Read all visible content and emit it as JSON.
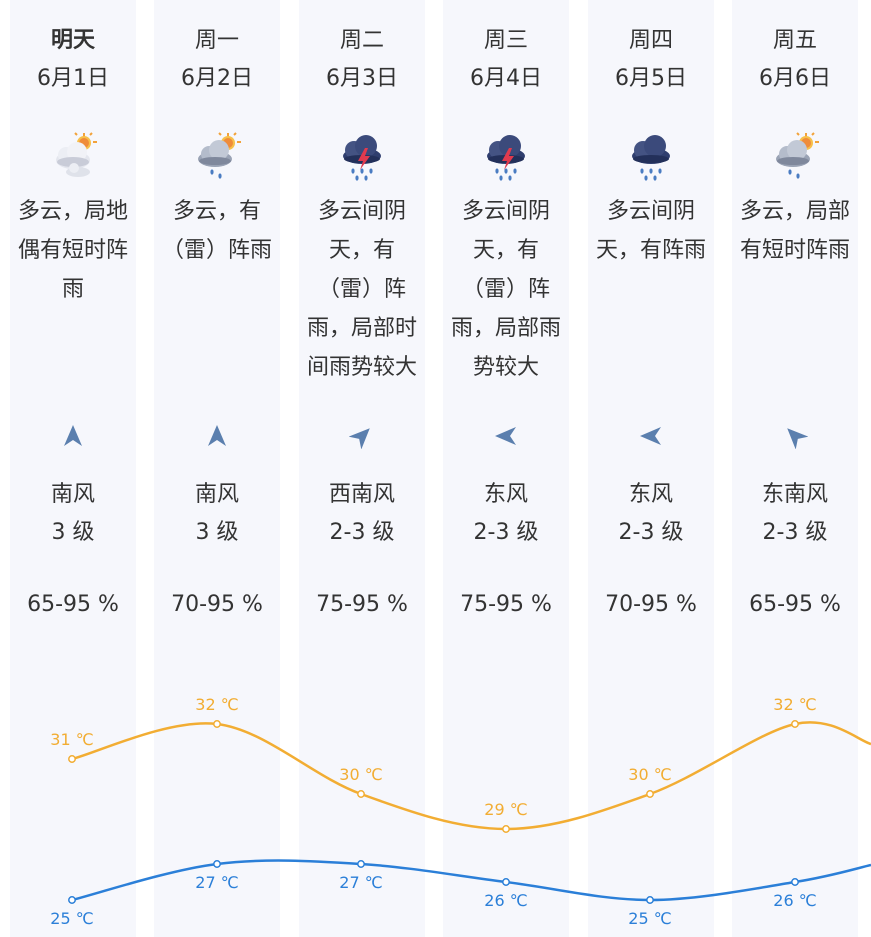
{
  "days": [
    {
      "day": "明天",
      "date": "6月1日",
      "icon": "partly-cloudy-showers-icon",
      "desc": "多云，局地偶有短时阵雨",
      "wind_dir": "南风",
      "wind_level": "3 级",
      "wind_arrow": "arrow-north-icon",
      "wind_rotation_deg": 0,
      "humidity": "65-95 %",
      "high": "31 ℃",
      "low": "25 ℃"
    },
    {
      "day": "周一",
      "date": "6月2日",
      "icon": "cloudy-rain-sun-icon",
      "desc": "多云，有（雷）阵雨",
      "wind_dir": "南风",
      "wind_level": "3 级",
      "wind_arrow": "arrow-north-icon",
      "wind_rotation_deg": 0,
      "humidity": "70-95 %",
      "high": "32 ℃",
      "low": "27 ℃"
    },
    {
      "day": "周二",
      "date": "6月3日",
      "icon": "thunderstorm-icon",
      "desc": "多云间阴天，有（雷）阵雨，局部时间雨势较大",
      "wind_dir": "西南风",
      "wind_level": "2-3 级",
      "wind_arrow": "arrow-northeast-icon",
      "wind_rotation_deg": 45,
      "humidity": "75-95 %",
      "high": "30 ℃",
      "low": "27 ℃"
    },
    {
      "day": "周三",
      "date": "6月4日",
      "icon": "thunderstorm-icon",
      "desc": "多云间阴天，有（雷）阵雨，局部雨势较大",
      "wind_dir": "东风",
      "wind_level": "2-3 级",
      "wind_arrow": "arrow-west-icon",
      "wind_rotation_deg": -90,
      "humidity": "75-95 %",
      "high": "29 ℃",
      "low": "26 ℃"
    },
    {
      "day": "周四",
      "date": "6月5日",
      "icon": "rain-cloud-icon",
      "desc": "多云间阴天，有阵雨",
      "wind_dir": "东风",
      "wind_level": "2-3 级",
      "wind_arrow": "arrow-west-icon",
      "wind_rotation_deg": -90,
      "humidity": "70-95 %",
      "high": "30 ℃",
      "low": "25 ℃"
    },
    {
      "day": "周五",
      "date": "6月6日",
      "icon": "cloudy-rain-sun-icon",
      "desc": "多云，局部有短时阵雨",
      "wind_dir": "东南风",
      "wind_level": "2-3 级",
      "wind_arrow": "arrow-northwest-icon",
      "wind_rotation_deg": -45,
      "humidity": "65-95 %",
      "high": "32 ℃",
      "low": "26 ℃"
    }
  ],
  "colors": {
    "high_line": "#f2ad33",
    "low_line": "#2b7fd8",
    "column_bg": "#f6f7fc",
    "text": "#333333",
    "arrow": "#5b7fae"
  },
  "chart_data": {
    "type": "line",
    "categories": [
      "明天",
      "周一",
      "周二",
      "周三",
      "周四",
      "周五"
    ],
    "series": [
      {
        "values": [
          31,
          32,
          30,
          29,
          30,
          32
        ],
        "labels": [
          "31 ℃",
          "32 ℃",
          "30 ℃",
          "29 ℃",
          "30 ℃",
          "32 ℃"
        ]
      },
      {
        "values": [
          25,
          27,
          27,
          26,
          25,
          26
        ],
        "labels": [
          "25 ℃",
          "27 ℃",
          "27 ℃",
          "26 ℃",
          "25 ℃",
          "26 ℃"
        ]
      }
    ]
  }
}
